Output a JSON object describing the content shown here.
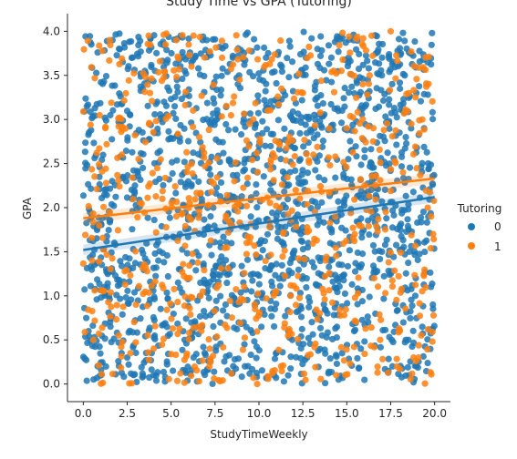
{
  "chart_data": {
    "type": "scatter",
    "title": "Study Time vs GPA (Tutoring)",
    "xlabel": "StudyTimeWeekly",
    "ylabel": "GPA",
    "xlim": [
      -0.9,
      20.9
    ],
    "ylim": [
      -0.2,
      4.2
    ],
    "xticks": [
      0.0,
      2.5,
      5.0,
      7.5,
      10.0,
      12.5,
      15.0,
      17.5,
      20.0
    ],
    "xtick_labels": [
      "0.0",
      "2.5",
      "5.0",
      "7.5",
      "10.0",
      "12.5",
      "15.0",
      "17.5",
      "20.0"
    ],
    "yticks": [
      0.0,
      0.5,
      1.0,
      1.5,
      2.0,
      2.5,
      3.0,
      3.5,
      4.0
    ],
    "ytick_labels": [
      "0.0",
      "0.5",
      "1.0",
      "1.5",
      "2.0",
      "2.5",
      "3.0",
      "3.5",
      "4.0"
    ],
    "grid": false,
    "legend": {
      "title": "Tutoring",
      "placement": "right"
    },
    "series": [
      {
        "name": "0",
        "color": "#1f77b4",
        "point_count": 1700,
        "y_range": [
          0.0,
          4.0
        ],
        "x_range": [
          0.0,
          20.0
        ],
        "regression": {
          "x": [
            0.0,
            20.0
          ],
          "y": [
            1.52,
            2.12
          ]
        },
        "points": [
          [
            0.3,
            0.6
          ],
          [
            1.2,
            1.1
          ],
          [
            2.5,
            0.3
          ],
          [
            3.1,
            2.4
          ],
          [
            4.0,
            0.1
          ],
          [
            4.6,
            3.2
          ],
          [
            5.5,
            1.7
          ],
          [
            6.2,
            0.6
          ],
          [
            6.8,
            3.9
          ],
          [
            7.4,
            2.0
          ],
          [
            8.1,
            0.9
          ],
          [
            8.8,
            3.4
          ],
          [
            9.2,
            0.2
          ],
          [
            10.0,
            2.7
          ],
          [
            10.6,
            1.3
          ],
          [
            11.3,
            3.6
          ],
          [
            11.9,
            0.5
          ],
          [
            12.6,
            2.2
          ],
          [
            13.2,
            3.0
          ],
          [
            13.9,
            0.8
          ],
          [
            14.5,
            1.9
          ],
          [
            15.1,
            3.7
          ],
          [
            15.8,
            0.4
          ],
          [
            16.4,
            2.5
          ],
          [
            17.0,
            1.5
          ],
          [
            17.6,
            0.2
          ],
          [
            18.3,
            3.5
          ],
          [
            18.9,
            1.0
          ],
          [
            19.4,
            2.9
          ],
          [
            19.9,
            0.9
          ]
        ]
      },
      {
        "name": "1",
        "color": "#ff7f0e",
        "point_count": 700,
        "y_range": [
          0.0,
          4.0
        ],
        "x_range": [
          0.0,
          20.0
        ],
        "regression": {
          "x": [
            0.0,
            20.0
          ],
          "y": [
            1.88,
            2.33
          ]
        },
        "points": [
          [
            0.5,
            1.4
          ],
          [
            1.5,
            3.9
          ],
          [
            2.2,
            2.6
          ],
          [
            3.0,
            0.9
          ],
          [
            3.8,
            3.3
          ],
          [
            4.5,
            2.1
          ],
          [
            5.3,
            3.9
          ],
          [
            5.9,
            1.2
          ],
          [
            6.6,
            2.8
          ],
          [
            7.2,
            0.4
          ],
          [
            7.9,
            3.7
          ],
          [
            8.6,
            2.3
          ],
          [
            9.3,
            1.6
          ],
          [
            9.9,
            0.0
          ],
          [
            10.5,
            3.1
          ],
          [
            11.2,
            2.0
          ],
          [
            11.8,
            1.0
          ],
          [
            12.5,
            3.3
          ],
          [
            13.1,
            2.6
          ],
          [
            13.8,
            1.4
          ],
          [
            14.4,
            0.1
          ],
          [
            15.0,
            2.9
          ],
          [
            15.7,
            1.8
          ],
          [
            16.3,
            3.5
          ],
          [
            16.9,
            0.5
          ],
          [
            17.5,
            4.0
          ],
          [
            18.2,
            2.4
          ],
          [
            18.8,
            0.3
          ],
          [
            19.3,
            3.0
          ],
          [
            19.8,
            1.9
          ]
        ]
      }
    ]
  }
}
